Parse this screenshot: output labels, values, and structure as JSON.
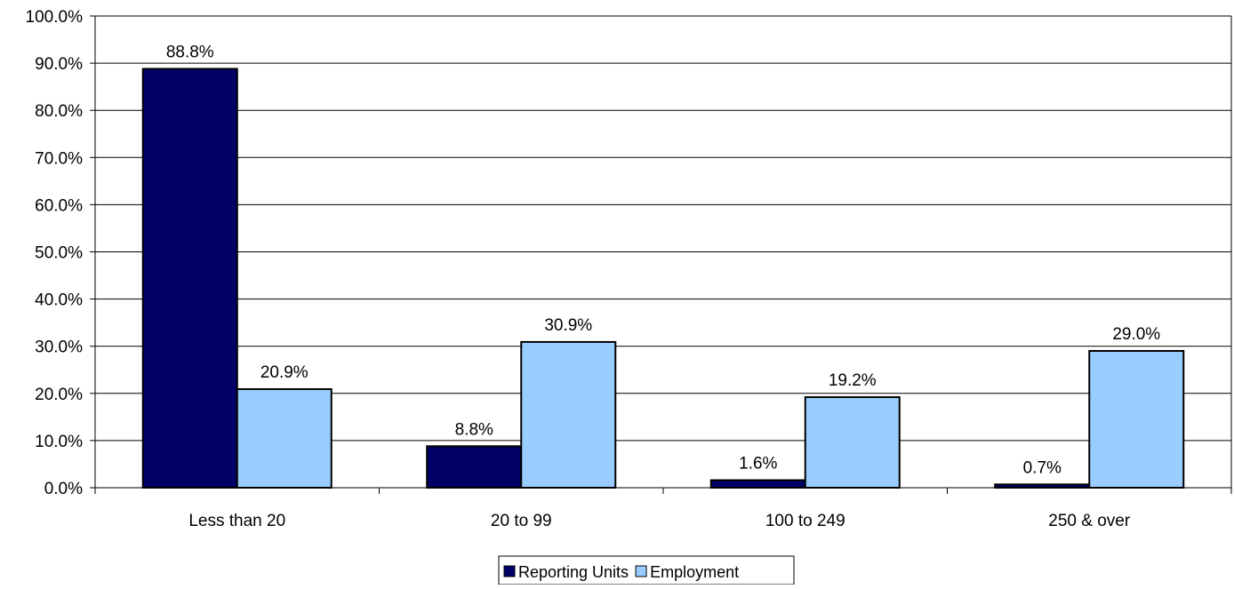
{
  "chart_data": {
    "type": "bar",
    "categories": [
      "Less than 20",
      "20 to 99",
      "100 to 249",
      "250 & over"
    ],
    "series": [
      {
        "name": "Reporting Units",
        "values": [
          88.8,
          8.8,
          1.6,
          0.7
        ],
        "labels": [
          "88.8%",
          "8.8%",
          "1.6%",
          "0.7%"
        ],
        "color": "#000066"
      },
      {
        "name": "Employment",
        "values": [
          20.9,
          30.9,
          19.2,
          29.0
        ],
        "labels": [
          "20.9%",
          "30.9%",
          "19.2%",
          "29.0%"
        ],
        "color": "#99CCFF"
      }
    ],
    "yticks": [
      "0.0%",
      "10.0%",
      "20.0%",
      "30.0%",
      "40.0%",
      "50.0%",
      "60.0%",
      "70.0%",
      "80.0%",
      "90.0%",
      "100.0%"
    ],
    "ylim": [
      0,
      100
    ],
    "grid": true,
    "legend_position": "bottom"
  }
}
